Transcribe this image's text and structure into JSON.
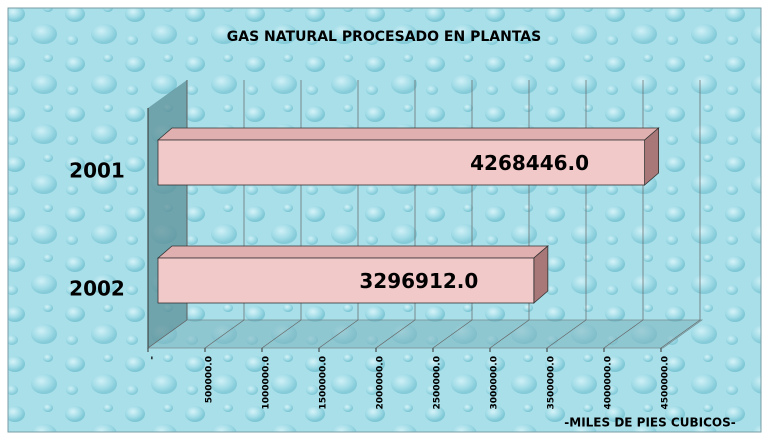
{
  "chart_data": {
    "type": "bar",
    "title": "GAS NATURAL PROCESADO EN PLANTAS",
    "categories": [
      "2001",
      "2002"
    ],
    "values": [
      4268446.0,
      3296912.0
    ],
    "value_labels": [
      "4268446.0",
      "3296912.0"
    ],
    "color": "#f2c9c9",
    "x_label": "-MILES DE PIES CUBICOS-",
    "xlim": [
      0,
      4500000
    ],
    "xticks": [
      {
        "value": 0,
        "label": "-"
      },
      {
        "value": 500000,
        "label": "500000.0"
      },
      {
        "value": 1000000,
        "label": "1000000.0"
      },
      {
        "value": 1500000,
        "label": "1500000.0"
      },
      {
        "value": 2000000,
        "label": "2000000.0"
      },
      {
        "value": 2500000,
        "label": "2500000.0"
      },
      {
        "value": 3000000,
        "label": "3000000.0"
      },
      {
        "value": 3500000,
        "label": "3500000.0"
      },
      {
        "value": 4000000,
        "label": "4000000.0"
      },
      {
        "value": 4500000,
        "label": "4500000.0"
      }
    ],
    "grid": true
  }
}
